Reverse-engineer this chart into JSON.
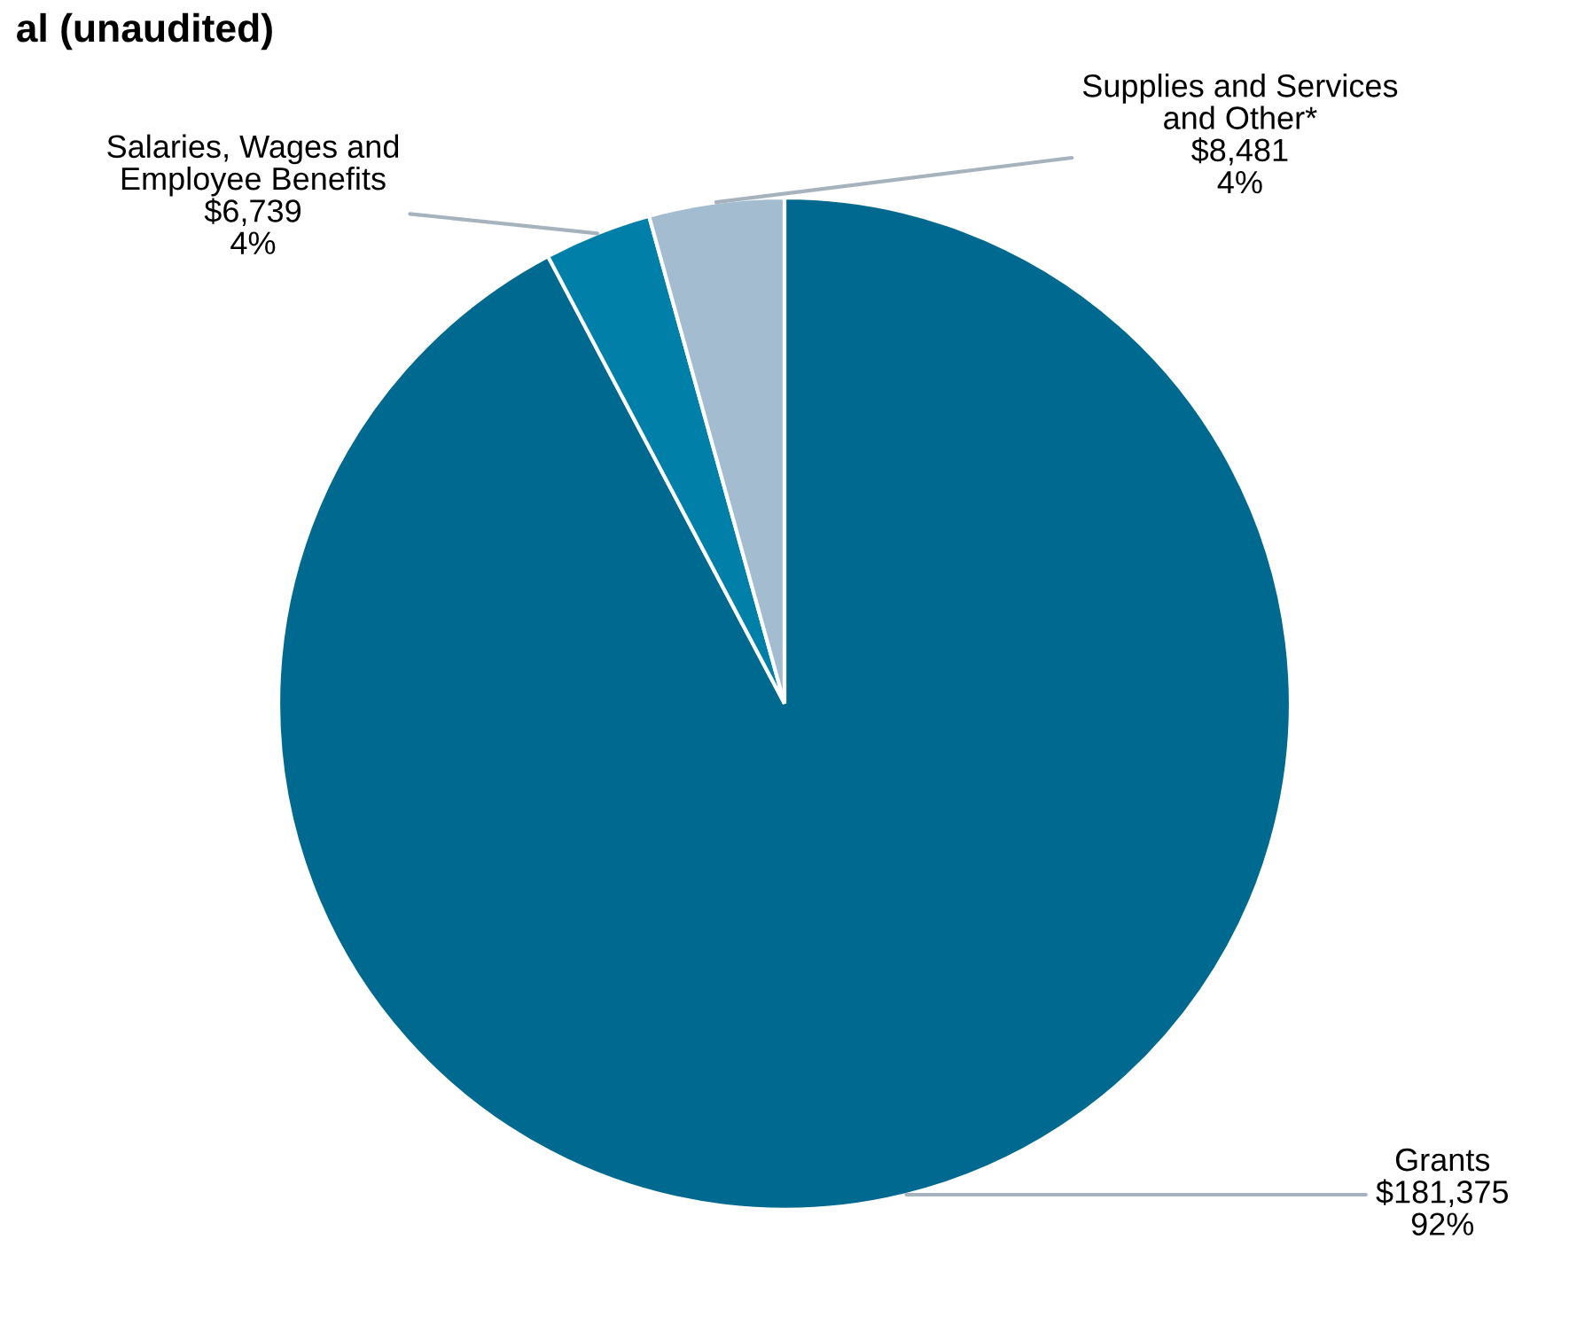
{
  "chart_data": {
    "type": "pie",
    "title": "al (unaudited)",
    "categories": [
      "Grants",
      "Salaries, Wages and\nEmployee Benefits",
      "Supplies and Services\nand Other*"
    ],
    "values": [
      181375,
      6739,
      8481
    ],
    "colors": [
      "#00698f",
      "#0080a8",
      "#a3bccf"
    ],
    "value_labels": [
      "$181,375\n92%",
      "$6,739\n4%",
      "$8,481\n4%"
    ]
  }
}
